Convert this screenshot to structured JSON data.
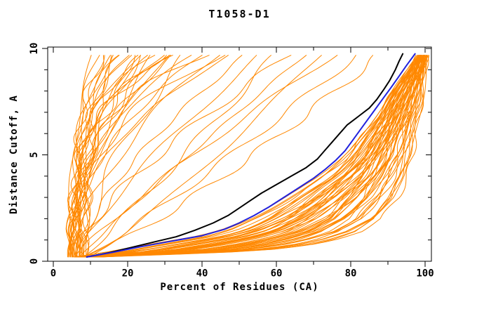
{
  "chart_data": {
    "type": "line",
    "title": "T1058-D1",
    "xlabel": "Percent of Residues (CA)",
    "ylabel": "Distance Cutoff, A",
    "xlim": [
      -1.5,
      101.7
    ],
    "ylim": [
      0,
      10.07
    ],
    "x_major_ticks": [
      0,
      20,
      40,
      60,
      80,
      100
    ],
    "x_minor_ticks": [
      10,
      30,
      50,
      70,
      90
    ],
    "y_major_ticks": [
      0,
      5,
      10
    ],
    "y_minor_ticks": [
      1,
      2,
      3,
      4,
      6,
      7,
      8,
      9
    ],
    "grid": false,
    "legend": null,
    "colors": {
      "ensemble": "#ff8800",
      "model_black": "#000000",
      "model_blue": "#2222dd",
      "frame": "#000000",
      "background": "#ffffff"
    },
    "series": [
      {
        "name": "reference-model-black",
        "color_key": "model_black",
        "points": [
          [
            9,
            0.2
          ],
          [
            15,
            0.4
          ],
          [
            21,
            0.65
          ],
          [
            27,
            0.9
          ],
          [
            33,
            1.15
          ],
          [
            38,
            1.45
          ],
          [
            43,
            1.8
          ],
          [
            47,
            2.15
          ],
          [
            50,
            2.5
          ],
          [
            53,
            2.85
          ],
          [
            56,
            3.2
          ],
          [
            60,
            3.6
          ],
          [
            64,
            4.0
          ],
          [
            68,
            4.4
          ],
          [
            71,
            4.8
          ],
          [
            73,
            5.2
          ],
          [
            75,
            5.6
          ],
          [
            77,
            6.0
          ],
          [
            79,
            6.4
          ],
          [
            82,
            6.8
          ],
          [
            85,
            7.2
          ],
          [
            87,
            7.6
          ],
          [
            89,
            8.1
          ],
          [
            90.5,
            8.5
          ],
          [
            92,
            9.0
          ],
          [
            93,
            9.4
          ],
          [
            94,
            9.75
          ]
        ]
      },
      {
        "name": "reference-model-blue",
        "color_key": "model_blue",
        "points": [
          [
            9,
            0.2
          ],
          [
            16,
            0.42
          ],
          [
            24,
            0.7
          ],
          [
            32,
            0.95
          ],
          [
            40,
            1.2
          ],
          [
            46,
            1.5
          ],
          [
            50,
            1.8
          ],
          [
            54,
            2.15
          ],
          [
            58,
            2.55
          ],
          [
            62,
            3.0
          ],
          [
            66,
            3.45
          ],
          [
            70,
            3.9
          ],
          [
            73,
            4.3
          ],
          [
            76,
            4.75
          ],
          [
            78.5,
            5.2
          ],
          [
            81,
            5.8
          ],
          [
            83.5,
            6.4
          ],
          [
            86,
            7.0
          ],
          [
            88.5,
            7.6
          ],
          [
            91,
            8.2
          ],
          [
            93,
            8.7
          ],
          [
            95,
            9.2
          ],
          [
            97.3,
            9.75
          ]
        ]
      }
    ],
    "ensemble": {
      "description": "orange prediction curves, percent of residues vs distance cutoff",
      "cutoff_start": 0.2,
      "cutoff_end": 9.75,
      "upper_boundary": [
        [
          9.7,
          0.2
        ],
        [
          17,
          0.42
        ],
        [
          25,
          0.7
        ],
        [
          33,
          0.95
        ],
        [
          41,
          1.2
        ],
        [
          47,
          1.5
        ],
        [
          51,
          1.8
        ],
        [
          55,
          2.15
        ],
        [
          59,
          2.55
        ],
        [
          63,
          3.0
        ],
        [
          67,
          3.45
        ],
        [
          71,
          3.9
        ],
        [
          74,
          4.3
        ],
        [
          77,
          4.75
        ],
        [
          79.5,
          5.2
        ],
        [
          82,
          5.8
        ],
        [
          84.5,
          6.4
        ],
        [
          87,
          7.0
        ],
        [
          89.5,
          7.6
        ],
        [
          92,
          8.2
        ],
        [
          94,
          8.7
        ],
        [
          96,
          9.2
        ],
        [
          98.3,
          9.75
        ]
      ],
      "outer_boundary": [
        [
          10,
          0.2
        ],
        [
          30,
          0.32
        ],
        [
          45,
          0.42
        ],
        [
          58,
          0.55
        ],
        [
          68,
          0.75
        ],
        [
          75,
          1.0
        ],
        [
          82,
          1.4
        ],
        [
          88,
          2.0
        ],
        [
          93,
          3.0
        ],
        [
          95.5,
          4.0
        ],
        [
          97,
          5.0
        ],
        [
          98,
          6.0
        ],
        [
          99,
          7.0
        ],
        [
          99.8,
          8.0
        ],
        [
          100.3,
          9.0
        ],
        [
          100.7,
          9.75
        ]
      ],
      "band_weights": [
        [
          0.02,
          0.05
        ],
        [
          0.05,
          0.02
        ],
        [
          0.08,
          0.2
        ],
        [
          0.1,
          0.05
        ],
        [
          0.12,
          0.3
        ],
        [
          0.15,
          0.1
        ],
        [
          0.18,
          0.05
        ],
        [
          0.2,
          0.35
        ],
        [
          0.22,
          0.1
        ],
        [
          0.25,
          0.4
        ],
        [
          0.28,
          0.15
        ],
        [
          0.3,
          0.5
        ],
        [
          0.32,
          0.2
        ],
        [
          0.35,
          0.1
        ],
        [
          0.38,
          0.55
        ],
        [
          0.4,
          0.25
        ],
        [
          0.42,
          0.6
        ],
        [
          0.45,
          0.3
        ],
        [
          0.48,
          0.15
        ],
        [
          0.5,
          0.65
        ],
        [
          0.52,
          0.35
        ],
        [
          0.55,
          0.7
        ],
        [
          0.58,
          0.4
        ],
        [
          0.6,
          0.3
        ],
        [
          0.62,
          0.75
        ],
        [
          0.65,
          0.45
        ],
        [
          0.68,
          0.8
        ],
        [
          0.7,
          0.5
        ],
        [
          0.72,
          0.35
        ],
        [
          0.75,
          0.85
        ],
        [
          0.78,
          0.55
        ],
        [
          0.8,
          0.9
        ],
        [
          0.82,
          0.6
        ],
        [
          0.85,
          0.45
        ],
        [
          0.88,
          0.95
        ],
        [
          0.9,
          0.65
        ],
        [
          0.92,
          1.0
        ],
        [
          0.95,
          0.7
        ],
        [
          0.98,
          0.85
        ],
        [
          1.0,
          0.95
        ],
        [
          0.03,
          0.15
        ],
        [
          0.07,
          0.3
        ],
        [
          0.13,
          0.45
        ],
        [
          0.17,
          0.6
        ],
        [
          0.23,
          0.75
        ],
        [
          0.27,
          0.9
        ],
        [
          0.33,
          0.05
        ],
        [
          0.37,
          0.2
        ],
        [
          0.43,
          0.35
        ],
        [
          0.47,
          0.5
        ],
        [
          0.53,
          0.65
        ],
        [
          0.57,
          0.8
        ],
        [
          0.63,
          0.95
        ],
        [
          0.67,
          0.1
        ],
        [
          0.73,
          0.25
        ],
        [
          0.77,
          0.4
        ],
        [
          0.83,
          0.55
        ],
        [
          0.87,
          0.7
        ],
        [
          0.93,
          0.85
        ],
        [
          0.97,
          0.6
        ]
      ],
      "fan_params": [
        [
          4,
          10.5,
          2.2
        ],
        [
          5.5,
          12,
          3.5
        ],
        [
          4,
          13,
          1.6
        ],
        [
          6,
          14,
          4.2
        ],
        [
          5,
          15,
          2.8
        ],
        [
          7,
          16,
          5
        ],
        [
          4.5,
          17,
          1.9
        ],
        [
          6,
          18,
          3.2
        ],
        [
          8,
          19,
          6
        ],
        [
          5,
          20,
          2.4
        ],
        [
          6.5,
          21,
          4.4
        ],
        [
          4,
          22,
          1.5
        ],
        [
          7,
          23,
          3.8
        ],
        [
          5.5,
          24,
          2.1
        ],
        [
          9,
          25,
          5.5
        ],
        [
          5,
          26,
          2.9
        ],
        [
          6,
          27,
          1.7
        ],
        [
          8,
          28,
          4.6
        ],
        [
          5.5,
          29,
          2.3
        ],
        [
          7,
          30,
          3.4
        ],
        [
          4.5,
          31,
          1.8
        ],
        [
          9,
          32,
          5
        ],
        [
          6,
          33,
          2.6
        ],
        [
          5,
          34,
          3.9
        ],
        [
          8,
          36,
          1.6
        ],
        [
          7,
          38,
          2.9
        ],
        [
          4.5,
          40,
          2.0
        ],
        [
          9,
          42,
          4.4
        ],
        [
          6,
          44,
          1.7
        ],
        [
          8,
          46,
          3.1
        ],
        [
          5,
          48,
          2.2
        ],
        [
          7,
          52,
          1.5
        ],
        [
          6,
          56,
          1.25
        ],
        [
          8,
          60,
          0.95
        ],
        [
          5,
          64,
          1.35
        ],
        [
          7,
          68,
          1.05
        ],
        [
          9,
          72,
          0.85
        ],
        [
          6,
          76,
          1.15
        ],
        [
          8,
          82,
          0.9
        ],
        [
          7,
          88,
          0.8
        ]
      ]
    }
  }
}
